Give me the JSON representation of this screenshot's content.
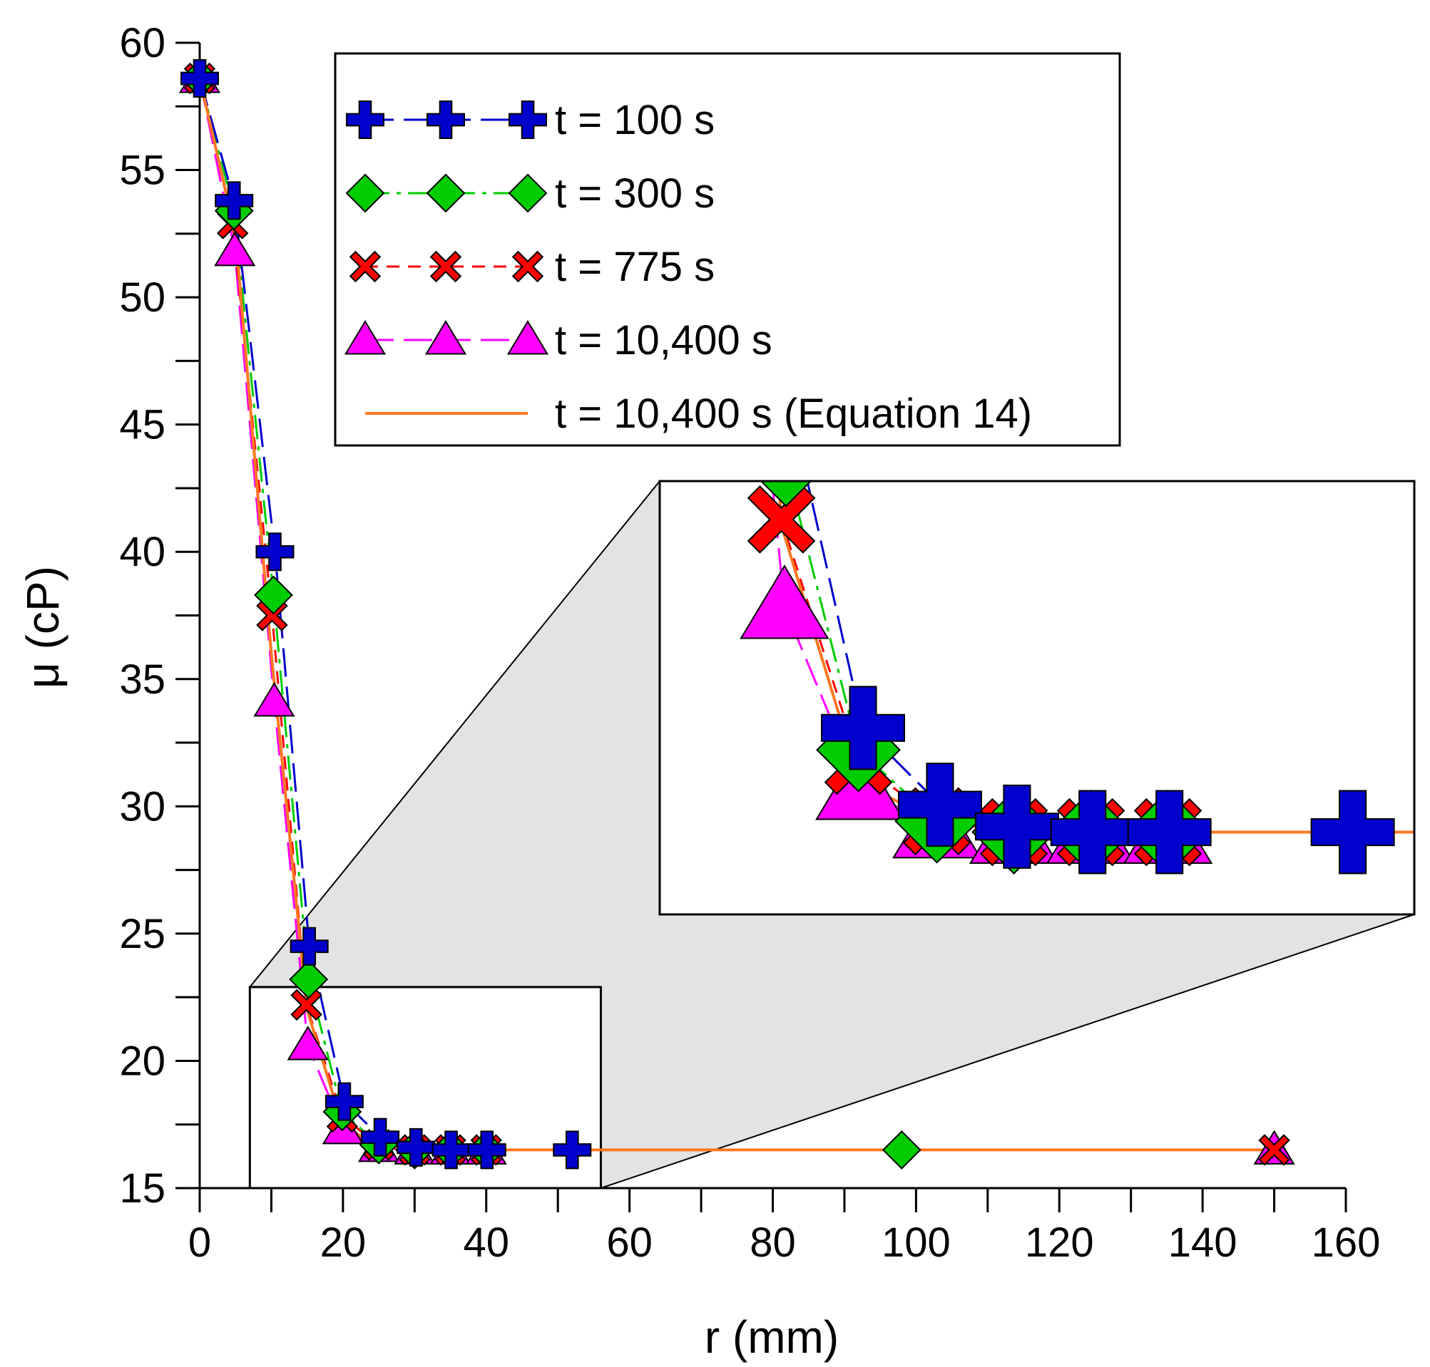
{
  "chart_data": {
    "type": "line",
    "xlabel": "r (mm)",
    "ylabel": "μ (cP)",
    "xlim": [
      0,
      160
    ],
    "ylim": [
      15,
      60
    ],
    "x_ticks": [
      "0",
      "20",
      "40",
      "60",
      "80",
      "100",
      "120",
      "140",
      "160"
    ],
    "y_ticks": [
      "15",
      "20",
      "25",
      "30",
      "35",
      "40",
      "45",
      "50",
      "55",
      "60"
    ],
    "grid": false,
    "legend_position": "top-center",
    "series": [
      {
        "name": "t = 100 s",
        "marker": "plus",
        "color": "#0000cc",
        "line": "long-dash",
        "x": [
          0,
          4.8,
          10.5,
          15.3,
          20.2,
          25.2,
          30.2,
          35.1,
          40.1,
          52
        ],
        "y": [
          58.6,
          53.8,
          40.0,
          24.5,
          18.4,
          17.0,
          16.6,
          16.5,
          16.5,
          16.5
        ]
      },
      {
        "name": "t = 300 s",
        "marker": "diamond",
        "color": "#00cc00",
        "line": "dash-dot",
        "x": [
          0,
          4.8,
          10.3,
          15.2,
          19.9,
          25,
          30,
          35,
          40,
          98
        ],
        "y": [
          58.6,
          53.4,
          38.3,
          23.2,
          18.0,
          16.7,
          16.5,
          16.5,
          16.5,
          16.5
        ]
      },
      {
        "name": "t = 775 s",
        "marker": "x",
        "color": "#ff0000",
        "line": "short-dash",
        "x": [
          0,
          4.6,
          10.1,
          14.9,
          19.9,
          25,
          30,
          35,
          40,
          150
        ],
        "y": [
          58.6,
          52.9,
          37.5,
          22.2,
          17.8,
          16.7,
          16.5,
          16.5,
          16.5,
          16.5
        ]
      },
      {
        "name": "t = 10,400 s",
        "marker": "triangle",
        "color": "#ff00ff",
        "line": "long-dash",
        "x": [
          0,
          4.9,
          10.4,
          15.1,
          20,
          25,
          30,
          35,
          40,
          150
        ],
        "y": [
          58.6,
          51.8,
          34.1,
          20.6,
          17.3,
          16.6,
          16.5,
          16.5,
          16.5,
          16.5
        ]
      },
      {
        "name": "t = 10,400 s (Equation 14)",
        "marker": "none",
        "color": "#ff7722",
        "line": "solid",
        "x": [
          0,
          5,
          10,
          15,
          20,
          25,
          30,
          40,
          60,
          100,
          150
        ],
        "y": [
          58.6,
          52.5,
          36.0,
          22.0,
          17.4,
          16.7,
          16.5,
          16.5,
          16.5,
          16.5,
          16.5
        ]
      }
    ],
    "inset": {
      "source_xlim": [
        7,
        56
      ],
      "source_ylim": [
        15,
        22.9
      ],
      "description": "magnified view of region"
    }
  }
}
